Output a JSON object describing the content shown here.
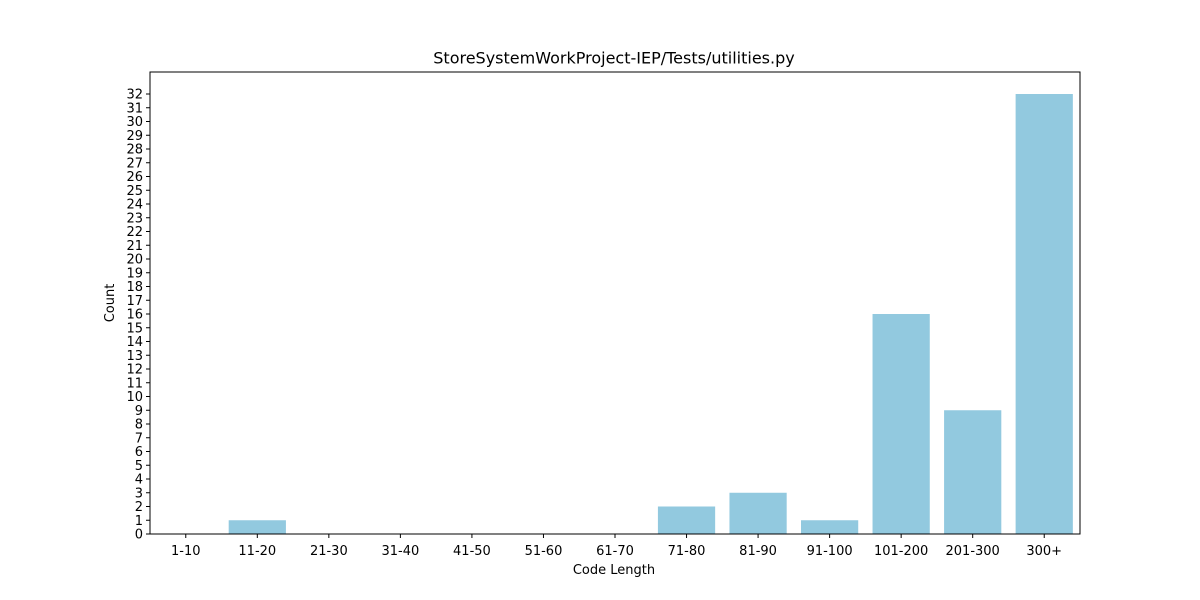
{
  "chart_data": {
    "type": "bar",
    "title": "StoreSystemWorkProject-IEP/Tests/utilities.py",
    "xlabel": "Code Length",
    "ylabel": "Count",
    "categories": [
      "1-10",
      "11-20",
      "21-30",
      "31-40",
      "41-50",
      "51-60",
      "61-70",
      "71-80",
      "81-90",
      "91-100",
      "101-200",
      "201-300",
      "300+"
    ],
    "values": [
      0,
      1,
      0,
      0,
      0,
      0,
      0,
      2,
      3,
      1,
      16,
      9,
      32
    ],
    "ylim": [
      0,
      32
    ],
    "yticks": [
      0,
      1,
      2,
      3,
      4,
      5,
      6,
      7,
      8,
      9,
      10,
      11,
      12,
      13,
      14,
      15,
      16,
      17,
      18,
      19,
      20,
      21,
      22,
      23,
      24,
      25,
      26,
      27,
      28,
      29,
      30,
      31,
      32
    ],
    "grid": false,
    "bar_color": "#92c9df"
  }
}
